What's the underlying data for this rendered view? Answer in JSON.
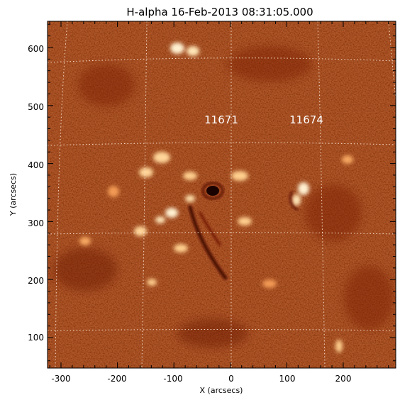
{
  "title": "H-alpha 16-Feb-2013 08:31:05.000",
  "xlabel": "X (arcsecs)",
  "ylabel": "Y (arcsecs)",
  "x_ticks": [
    "-300",
    "-200",
    "-100",
    "0",
    "100",
    "200"
  ],
  "y_ticks": [
    "100",
    "200",
    "300",
    "400",
    "500",
    "600"
  ],
  "annotations": [
    "11671",
    "11674"
  ],
  "colors": {
    "background": "#c8460f",
    "bright": "#fff1d2",
    "dark": "#4a0a00",
    "grid": "#f3d4bd"
  }
}
